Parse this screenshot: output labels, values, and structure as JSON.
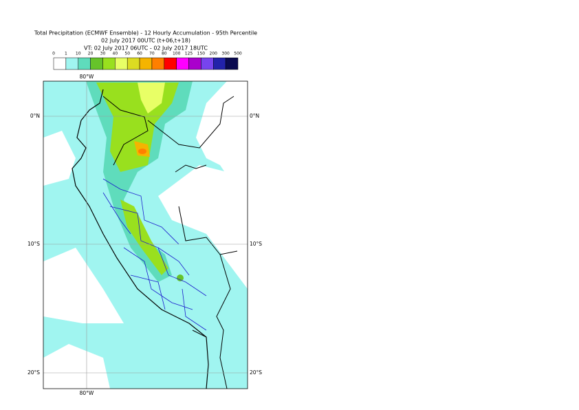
{
  "title": {
    "lines": [
      "Total Precipitation (ECMWF Ensemble) - 12 Hourly Accumulation - 95th Percentile",
      "02 July 2017 00UTC (t+06,t+18)",
      "VT: 02 July 2017 06UTC - 02 July 2017 18UTC"
    ]
  },
  "legend": {
    "labels": [
      "0",
      "1",
      "10",
      "20",
      "30",
      "40",
      "50",
      "60",
      "70",
      "80",
      "100",
      "125",
      "150",
      "200",
      "300",
      "500"
    ],
    "colors": [
      "#ffffff",
      "#a0f5f0",
      "#5fdcbc",
      "#66c32a",
      "#99e01e",
      "#e8ff66",
      "#dcdc22",
      "#f5b400",
      "#ff7f00",
      "#ff0000",
      "#ff00ff",
      "#aa00cc",
      "#7744ee",
      "#2222aa",
      "#0a0a50"
    ]
  },
  "map": {
    "lon_top": "80°W",
    "lon_bottom": "80°W",
    "lat_left": [
      "0°N",
      "10°S",
      "20°S"
    ],
    "lat_right": [
      "0°N",
      "10°S",
      "20°S"
    ]
  }
}
